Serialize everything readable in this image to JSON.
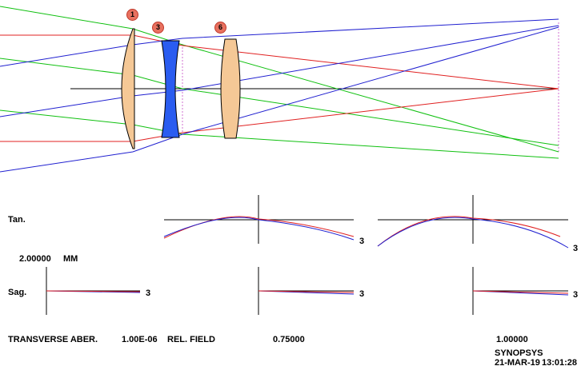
{
  "surfaces": [
    "1",
    "3",
    "6"
  ],
  "plot_labels": {
    "tan": "Tan.",
    "sag": "Sag.",
    "scale_value": "2.00000",
    "scale_unit": "MM",
    "curve_id": "3"
  },
  "footer": {
    "title": "TRANSVERSE ABER.",
    "wavelength": "1.00E-06",
    "field_label": "REL. FIELD",
    "field_1": "0.75000",
    "field_2": "1.00000",
    "program": "SYNOPSYS",
    "date": "21-MAR-19",
    "time": "13:01:28"
  },
  "colors": {
    "lens_positive": "#f5c896",
    "lens_negative": "#2a5cf0",
    "ray_red": "#e02020",
    "ray_blue": "#2020d0",
    "ray_green": "#10c010",
    "axis": "#000000",
    "badge": "#e8715f"
  }
}
